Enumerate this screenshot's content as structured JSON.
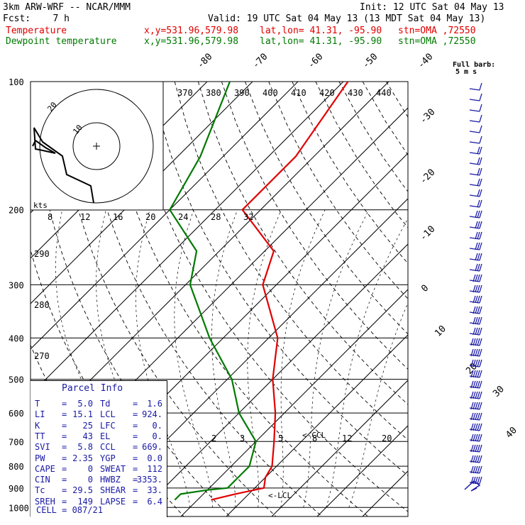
{
  "header": {
    "model": "3km ARW-WRF -- NCAR/MMM",
    "init": "Init: 12 UTC Sat 04 May 13",
    "fcst": "Fcst:    7 h",
    "valid": "Valid: 19 UTC Sat 04 May 13 (13 MDT Sat 04 May 13)",
    "series": [
      {
        "name": "Temperature",
        "coords": "x,y=531.96,579.98",
        "latlon": "lat,lon= 41.31, -95.90",
        "stn": "stn=OMA ,72550",
        "color": "#e00000"
      },
      {
        "name": "Dewpoint temperature",
        "coords": "x,y=531.96,579.98",
        "latlon": "lat,lon= 41.31, -95.90",
        "stn": "stn=OMA ,72550",
        "color": "#007a00"
      }
    ]
  },
  "chart_data": {
    "type": "line",
    "diagram": "skew-T log-P",
    "pressure_levels": [
      100,
      200,
      300,
      400,
      500,
      600,
      700,
      800,
      900,
      1000
    ],
    "temperature_isotherm_labels": [
      -80,
      -70,
      -60,
      -50,
      -40,
      -30,
      -20,
      -10,
      0,
      10,
      20,
      30,
      40
    ],
    "theta_labels": [
      370,
      380,
      390,
      400,
      410,
      420,
      430,
      440
    ],
    "theta_low_labels": [
      290,
      280,
      270
    ],
    "mixing_ratio_labels": [
      2,
      3,
      5,
      8,
      12,
      20
    ],
    "series": [
      {
        "name": "Temperature",
        "color": "#e00000",
        "points": [
          [
            100,
            -59
          ],
          [
            150,
            -54
          ],
          [
            200,
            -54
          ],
          [
            250,
            -38
          ],
          [
            300,
            -33
          ],
          [
            400,
            -18
          ],
          [
            500,
            -10
          ],
          [
            600,
            -2
          ],
          [
            700,
            4
          ],
          [
            800,
            9
          ],
          [
            850,
            10
          ],
          [
            900,
            12
          ],
          [
            930,
            7
          ],
          [
            960,
            3
          ]
        ]
      },
      {
        "name": "Dewpoint temperature",
        "color": "#007a00",
        "points": [
          [
            100,
            -85
          ],
          [
            150,
            -75
          ],
          [
            200,
            -70
          ],
          [
            250,
            -55
          ],
          [
            300,
            -49
          ],
          [
            400,
            -33
          ],
          [
            500,
            -19
          ],
          [
            600,
            -10
          ],
          [
            700,
            0
          ],
          [
            800,
            4
          ],
          [
            850,
            4
          ],
          [
            900,
            4
          ],
          [
            910,
            0
          ],
          [
            930,
            -5
          ],
          [
            960,
            -5
          ]
        ]
      }
    ],
    "annotations": [
      "<-CCL",
      "<-LCL"
    ],
    "wind_barb_legend": "Full barb:",
    "wind_barb_unit": "5 m s",
    "hodograph": {
      "units_label": "kts",
      "speed_ticks": [
        8,
        12,
        16,
        20,
        24,
        28,
        32
      ],
      "ring_labels": [
        "20",
        "10"
      ]
    }
  },
  "parcel_info": {
    "title": "Parcel Info",
    "rows": [
      {
        "l1": "T",
        "v1": "5.0",
        "l2": "Td",
        "v2": "1.6"
      },
      {
        "l1": "LI",
        "v1": "15.1",
        "l2": "LCL",
        "v2": "924."
      },
      {
        "l1": "K",
        "v1": "25",
        "l2": "LFC",
        "v2": "0."
      },
      {
        "l1": "TT",
        "v1": "43",
        "l2": "EL",
        "v2": "0."
      },
      {
        "l1": "SVI",
        "v1": "5.8",
        "l2": "CCL",
        "v2": "669."
      },
      {
        "l1": "PW",
        "v1": "2.35",
        "l2": "YGP",
        "v2": "0.0"
      },
      {
        "l1": "CAPE",
        "v1": "0",
        "l2": "SWEAT",
        "v2": "112"
      },
      {
        "l1": "CIN",
        "v1": "0",
        "l2": "HWBZ",
        "v2": "3353."
      },
      {
        "l1": "Tc",
        "v1": "29.5",
        "l2": "SHEAR",
        "v2": "33."
      },
      {
        "l1": "SREH",
        "v1": "149",
        "l2": "LAPSE",
        "v2": "6.4"
      }
    ],
    "cell": "CELL = 087/21"
  }
}
